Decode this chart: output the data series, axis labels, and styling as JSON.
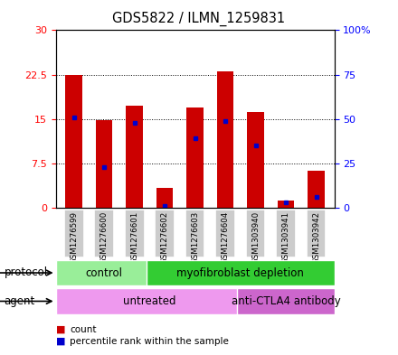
{
  "title": "GDS5822 / ILMN_1259831",
  "samples": [
    "GSM1276599",
    "GSM1276600",
    "GSM1276601",
    "GSM1276602",
    "GSM1276603",
    "GSM1276604",
    "GSM1303940",
    "GSM1303941",
    "GSM1303942"
  ],
  "count_values": [
    22.5,
    14.8,
    17.2,
    3.3,
    17.0,
    23.1,
    16.2,
    1.2,
    6.3
  ],
  "percentile_values": [
    51,
    23,
    48,
    1,
    39,
    49,
    35,
    3,
    6
  ],
  "ylim_left": [
    0,
    30
  ],
  "ylim_right": [
    0,
    100
  ],
  "yticks_left": [
    0,
    7.5,
    15,
    22.5,
    30
  ],
  "yticks_right": [
    0,
    25,
    50,
    75,
    100
  ],
  "ytick_labels_left": [
    "0",
    "7.5",
    "15",
    "22.5",
    "30"
  ],
  "ytick_labels_right": [
    "0",
    "25",
    "50",
    "75",
    "100%"
  ],
  "bar_color": "#cc0000",
  "dot_color": "#0000cc",
  "bg_color": "#ffffff",
  "plot_bg": "#ffffff",
  "protocol_groups": [
    {
      "label": "control",
      "start": 0,
      "end": 3,
      "color": "#99ee99"
    },
    {
      "label": "myofibroblast depletion",
      "start": 3,
      "end": 9,
      "color": "#33cc33"
    }
  ],
  "agent_groups": [
    {
      "label": "untreated",
      "start": 0,
      "end": 6,
      "color": "#ee99ee"
    },
    {
      "label": "anti-CTLA4 antibody",
      "start": 6,
      "end": 9,
      "color": "#cc66cc"
    }
  ],
  "protocol_label": "protocol",
  "agent_label": "agent",
  "bar_width": 0.55,
  "tick_bg_color": "#cccccc"
}
